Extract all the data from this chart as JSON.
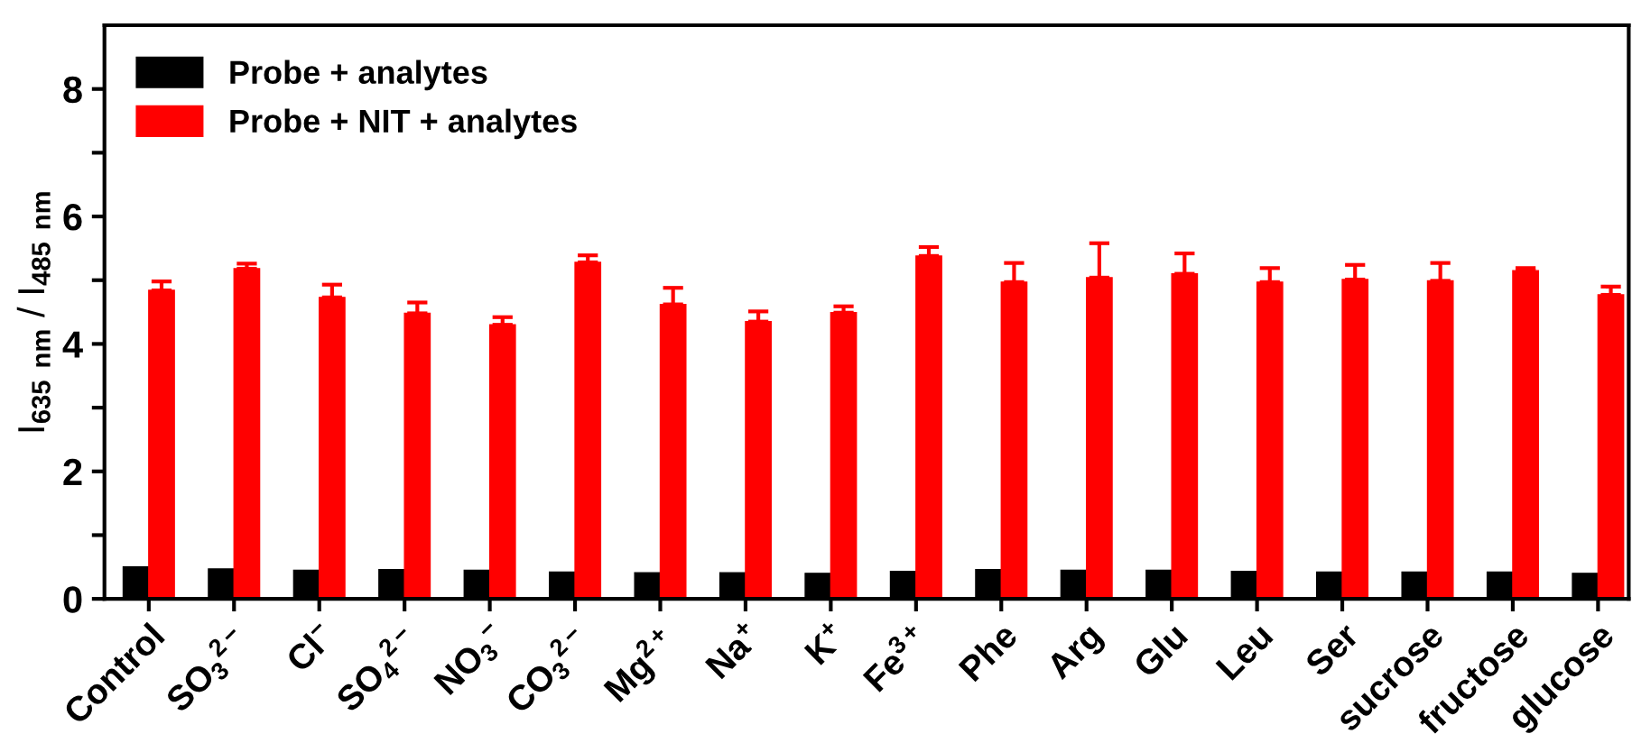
{
  "chart_data": {
    "type": "bar",
    "ylabel": "I$_{635}$ $_{nm}$ / I$_{485}$ $_{nm}$",
    "categories": [
      "Control",
      "SO$_{3}$$^{2−}$",
      "Cl$^{−}$",
      "SO$_{4}$$^{2−}$",
      "NO$_{3}$$^{−}$",
      "CO$_{3}$$^{2−}$",
      "Mg$^{2+}$",
      "Na$^{+}$",
      "K$^{+}$",
      "Fe$^{3+}$",
      "Phe",
      "Arg",
      "Glu",
      "Leu",
      "Ser",
      "sucrose",
      "fructose",
      "glucose"
    ],
    "series": [
      {
        "name": "Probe + analytes",
        "color": "#000000",
        "values": [
          0.5,
          0.47,
          0.45,
          0.46,
          0.45,
          0.42,
          0.41,
          0.41,
          0.4,
          0.43,
          0.46,
          0.45,
          0.45,
          0.43,
          0.42,
          0.42,
          0.42,
          0.4
        ]
      },
      {
        "name": "Probe + NIT + analytes",
        "color": "#ff0000",
        "values": [
          4.84,
          5.18,
          4.73,
          4.48,
          4.3,
          5.28,
          4.62,
          4.35,
          4.49,
          5.38,
          4.97,
          5.04,
          5.1,
          4.97,
          5.01,
          4.99,
          5.15,
          4.77
        ],
        "errors": [
          [
            4.84,
            4.98
          ],
          [
            5.18,
            5.26
          ],
          [
            4.73,
            4.93
          ],
          [
            4.48,
            4.65
          ],
          [
            4.3,
            4.42
          ],
          [
            5.28,
            5.39
          ],
          [
            4.62,
            4.88
          ],
          [
            4.35,
            4.51
          ],
          [
            4.49,
            4.59
          ],
          [
            5.38,
            5.52
          ],
          [
            4.97,
            5.27
          ],
          [
            5.04,
            5.58
          ],
          [
            5.1,
            5.42
          ],
          [
            4.97,
            5.19
          ],
          [
            5.01,
            5.24
          ],
          [
            4.99,
            5.27
          ],
          [
            5.15,
            5.19
          ],
          [
            4.77,
            4.9
          ]
        ]
      }
    ],
    "ylim": [
      0,
      9
    ],
    "yticks": [
      0,
      {
        "value": 1,
        "label": null
      },
      2,
      {
        "value": 3,
        "label": null
      },
      4,
      {
        "value": 5,
        "label": null
      },
      6,
      {
        "value": 7,
        "label": null
      },
      8
    ],
    "grid": false,
    "legend": "top left"
  }
}
